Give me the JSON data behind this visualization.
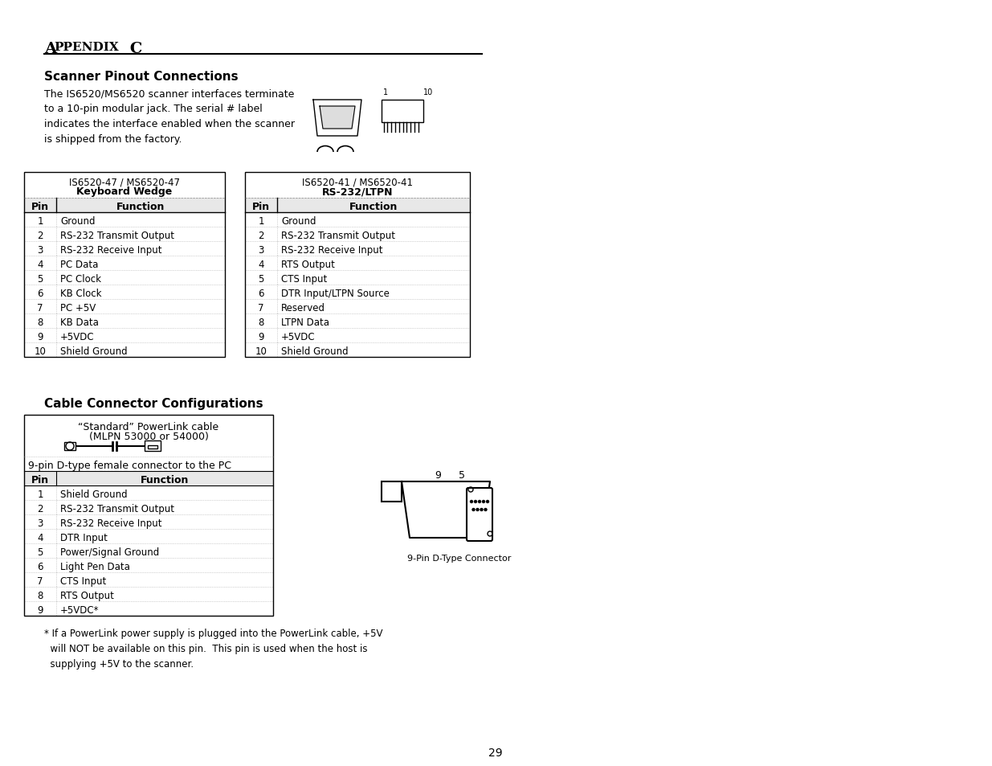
{
  "title": "APPENDIX C",
  "section1_title": "Scanner Pinout Connections",
  "section1_body": "The IS6520/MS6520 scanner interfaces terminate\nto a 10-pin modular jack. The serial # label\nindicates the interface enabled when the scanner\nis shipped from the factory.",
  "table1_header_title": "IS6520-47 / MS6520-47",
  "table1_header_sub": "Keyboard Wedge",
  "table1_col1": "Pin",
  "table1_col2": "Function",
  "table1_data": [
    [
      "1",
      "Ground"
    ],
    [
      "2",
      "RS-232 Transmit Output"
    ],
    [
      "3",
      "RS-232 Receive Input"
    ],
    [
      "4",
      "PC Data"
    ],
    [
      "5",
      "PC Clock"
    ],
    [
      "6",
      "KB Clock"
    ],
    [
      "7",
      "PC +5V"
    ],
    [
      "8",
      "KB Data"
    ],
    [
      "9",
      "+5VDC"
    ],
    [
      "10",
      "Shield Ground"
    ]
  ],
  "table2_header_title": "IS6520-41 / MS6520-41",
  "table2_header_sub": "RS-232/LTPN",
  "table2_col1": "Pin",
  "table2_col2": "Function",
  "table2_data": [
    [
      "1",
      "Ground"
    ],
    [
      "2",
      "RS-232 Transmit Output"
    ],
    [
      "3",
      "RS-232 Receive Input"
    ],
    [
      "4",
      "RTS Output"
    ],
    [
      "5",
      "CTS Input"
    ],
    [
      "6",
      "DTR Input/LTPN Source"
    ],
    [
      "7",
      "Reserved"
    ],
    [
      "8",
      "LTPN Data"
    ],
    [
      "9",
      "+5VDC"
    ],
    [
      "10",
      "Shield Ground"
    ]
  ],
  "section2_title": "Cable Connector Configurations",
  "cable_line1": "“Standard” PowerLink cable",
  "cable_line2": "(MLPN 53000 or 54000)",
  "connector_label": "9-pin D-type female connector to the PC",
  "table3_col1": "Pin",
  "table3_col2": "Function",
  "table3_data": [
    [
      "1",
      "Shield Ground"
    ],
    [
      "2",
      "RS-232 Transmit Output"
    ],
    [
      "3",
      "RS-232 Receive Input"
    ],
    [
      "4",
      "DTR Input"
    ],
    [
      "5",
      "Power/Signal Ground"
    ],
    [
      "6",
      "Light Pen Data"
    ],
    [
      "7",
      "CTS Input"
    ],
    [
      "8",
      "RTS Output"
    ],
    [
      "9",
      "+5VDC*"
    ]
  ],
  "footnote": "* If a PowerLink power supply is plugged into the PowerLink cable, +5V\n  will NOT be available on this pin.  This pin is used when the host is\n  supplying +5V to the scanner.",
  "page_number": "29",
  "connector_diagram_label": "9-Pin D-Type Connector"
}
